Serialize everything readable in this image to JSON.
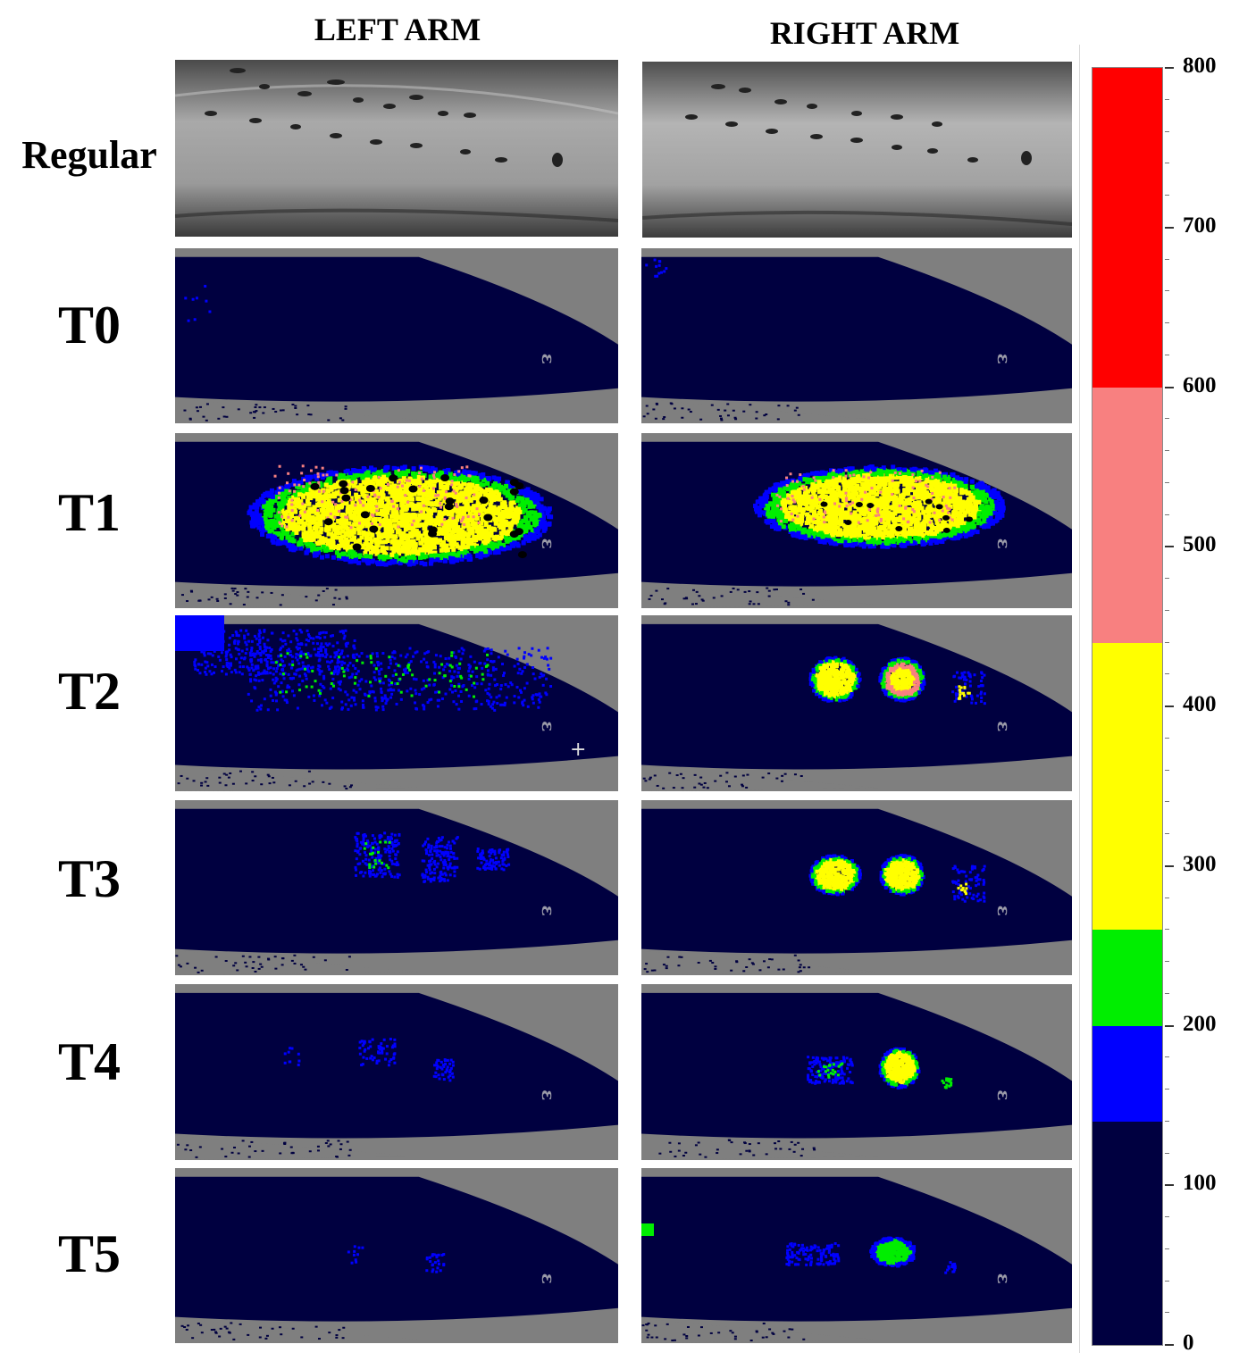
{
  "columns": {
    "left": "LEFT ARM",
    "right": "RIGHT ARM"
  },
  "rows": [
    "Regular",
    "T0",
    "T1",
    "T2",
    "T3",
    "T4",
    "T5"
  ],
  "colorbar": {
    "ticks": [
      "800",
      "700",
      "600",
      "500",
      "400",
      "300",
      "200",
      "100",
      "0"
    ],
    "bands": [
      {
        "from": 600,
        "to": 800,
        "color": "#ff0000"
      },
      {
        "from": 440,
        "to": 600,
        "color": "#f88080"
      },
      {
        "from": 260,
        "to": 440,
        "color": "#ffff00"
      },
      {
        "from": 200,
        "to": 260,
        "color": "#00ee00"
      },
      {
        "from": 140,
        "to": 200,
        "color": "#0000ff"
      },
      {
        "from": 0,
        "to": 140,
        "color": "#000040"
      }
    ]
  },
  "colors": {
    "background": "#7f7f7f",
    "arm": "#000040",
    "skin": "#b8b8b8"
  },
  "panel_markers": {
    "t2_left_crosshair": "+"
  }
}
